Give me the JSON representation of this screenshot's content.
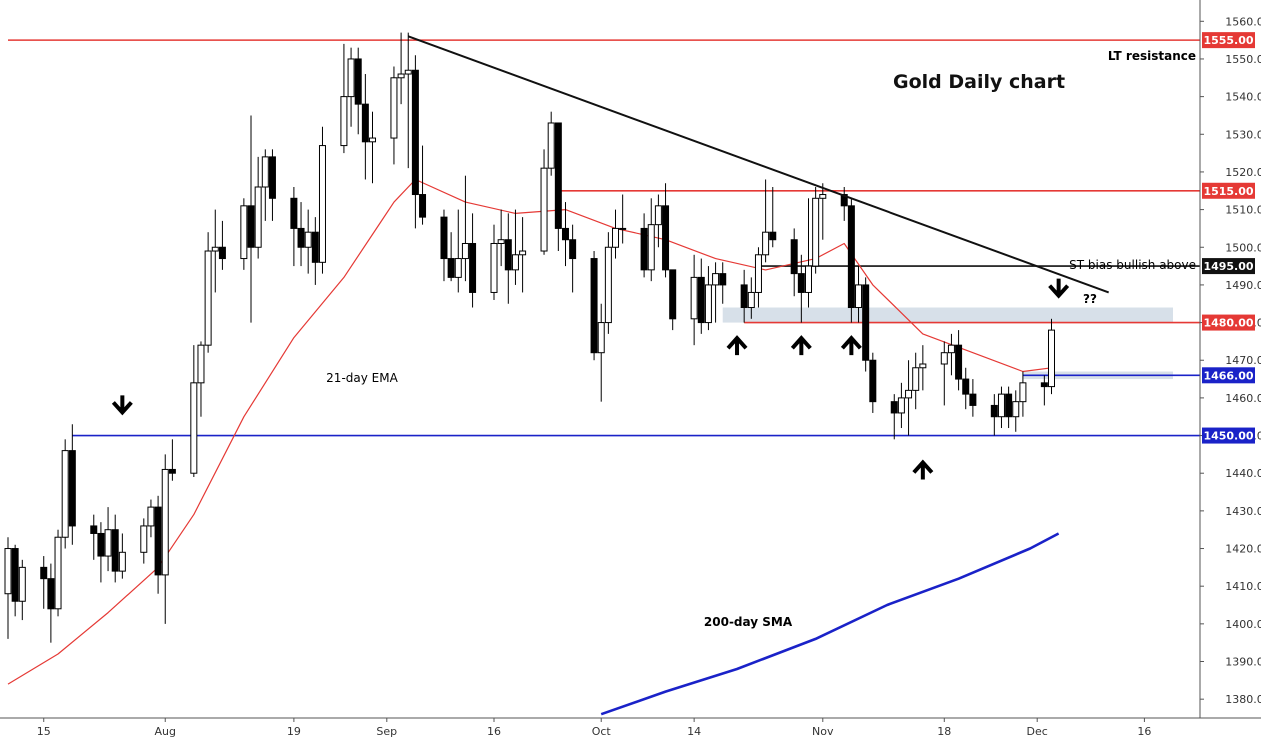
{
  "chart_data": {
    "type": "candlestick",
    "title": "Gold Daily chart",
    "ylim": [
      1375,
      1563
    ],
    "y_ticks": [
      1380,
      1390,
      1400,
      1410,
      1420,
      1430,
      1440,
      1450,
      1460,
      1470,
      1480,
      1490,
      1500,
      1510,
      1520,
      1530,
      1540,
      1550,
      1560
    ],
    "y_tick_labels": [
      "1380.00",
      "1390.00",
      "1400.00",
      "1410.00",
      "1420.00",
      "1430.00",
      "1440.00",
      "1450.00",
      "1460.00",
      "1470.00",
      "1480.00",
      "1490.00",
      "1500.00",
      "1510.00",
      "1520.00",
      "1530.00",
      "1540.00",
      "1550.00",
      "1560.00"
    ],
    "x_range": [
      "2019-07-10",
      "2019-12-20"
    ],
    "x_ticks": [
      {
        "date": "2019-07-15",
        "label": "15"
      },
      {
        "date": "2019-08-01",
        "label": "Aug"
      },
      {
        "date": "2019-08-19",
        "label": "19"
      },
      {
        "date": "2019-09-01",
        "label": "Sep"
      },
      {
        "date": "2019-09-16",
        "label": "16"
      },
      {
        "date": "2019-10-01",
        "label": "Oct"
      },
      {
        "date": "2019-10-14",
        "label": "14"
      },
      {
        "date": "2019-11-01",
        "label": "Nov"
      },
      {
        "date": "2019-11-18",
        "label": "18"
      },
      {
        "date": "2019-12-01",
        "label": "Dec"
      },
      {
        "date": "2019-12-16",
        "label": "16"
      }
    ],
    "candles": [
      {
        "d": "2019-07-10",
        "o": 1408,
        "h": 1423,
        "l": 1396,
        "c": 1420
      },
      {
        "d": "2019-07-11",
        "o": 1420,
        "h": 1421,
        "l": 1402,
        "c": 1406
      },
      {
        "d": "2019-07-12",
        "o": 1406,
        "h": 1417,
        "l": 1401,
        "c": 1415
      },
      {
        "d": "2019-07-15",
        "o": 1415,
        "h": 1418,
        "l": 1404,
        "c": 1412
      },
      {
        "d": "2019-07-16",
        "o": 1412,
        "h": 1416,
        "l": 1395,
        "c": 1404
      },
      {
        "d": "2019-07-17",
        "o": 1404,
        "h": 1425,
        "l": 1402,
        "c": 1423
      },
      {
        "d": "2019-07-18",
        "o": 1423,
        "h": 1449,
        "l": 1420,
        "c": 1446
      },
      {
        "d": "2019-07-19",
        "o": 1446,
        "h": 1453,
        "l": 1421,
        "c": 1426
      },
      {
        "d": "2019-07-22",
        "o": 1426,
        "h": 1429,
        "l": 1417,
        "c": 1424
      },
      {
        "d": "2019-07-23",
        "o": 1424,
        "h": 1427,
        "l": 1411,
        "c": 1418
      },
      {
        "d": "2019-07-24",
        "o": 1418,
        "h": 1431,
        "l": 1414,
        "c": 1425
      },
      {
        "d": "2019-07-25",
        "o": 1425,
        "h": 1429,
        "l": 1411,
        "c": 1414
      },
      {
        "d": "2019-07-26",
        "o": 1414,
        "h": 1424,
        "l": 1412,
        "c": 1419
      },
      {
        "d": "2019-07-29",
        "o": 1419,
        "h": 1428,
        "l": 1416,
        "c": 1426
      },
      {
        "d": "2019-07-30",
        "o": 1426,
        "h": 1433,
        "l": 1423,
        "c": 1431
      },
      {
        "d": "2019-07-31",
        "o": 1431,
        "h": 1434,
        "l": 1408,
        "c": 1413
      },
      {
        "d": "2019-08-01",
        "o": 1413,
        "h": 1445,
        "l": 1400,
        "c": 1441
      },
      {
        "d": "2019-08-02",
        "o": 1441,
        "h": 1449,
        "l": 1438,
        "c": 1440
      },
      {
        "d": "2019-08-05",
        "o": 1440,
        "h": 1474,
        "l": 1439,
        "c": 1464
      },
      {
        "d": "2019-08-06",
        "o": 1464,
        "h": 1475,
        "l": 1455,
        "c": 1474
      },
      {
        "d": "2019-08-07",
        "o": 1474,
        "h": 1504,
        "l": 1472,
        "c": 1499
      },
      {
        "d": "2019-08-08",
        "o": 1499,
        "h": 1510,
        "l": 1488,
        "c": 1500
      },
      {
        "d": "2019-08-09",
        "o": 1500,
        "h": 1507,
        "l": 1494,
        "c": 1497
      },
      {
        "d": "2019-08-12",
        "o": 1497,
        "h": 1513,
        "l": 1494,
        "c": 1511
      },
      {
        "d": "2019-08-13",
        "o": 1511,
        "h": 1535,
        "l": 1480,
        "c": 1500
      },
      {
        "d": "2019-08-14",
        "o": 1500,
        "h": 1524,
        "l": 1497,
        "c": 1516
      },
      {
        "d": "2019-08-15",
        "o": 1516,
        "h": 1526,
        "l": 1507,
        "c": 1524
      },
      {
        "d": "2019-08-16",
        "o": 1524,
        "h": 1526,
        "l": 1507,
        "c": 1513
      },
      {
        "d": "2019-08-19",
        "o": 1513,
        "h": 1516,
        "l": 1495,
        "c": 1505
      },
      {
        "d": "2019-08-20",
        "o": 1505,
        "h": 1512,
        "l": 1495,
        "c": 1500
      },
      {
        "d": "2019-08-21",
        "o": 1500,
        "h": 1510,
        "l": 1493,
        "c": 1504
      },
      {
        "d": "2019-08-22",
        "o": 1504,
        "h": 1508,
        "l": 1490,
        "c": 1496
      },
      {
        "d": "2019-08-23",
        "o": 1496,
        "h": 1532,
        "l": 1493,
        "c": 1527
      },
      {
        "d": "2019-08-26",
        "o": 1527,
        "h": 1554,
        "l": 1525,
        "c": 1540
      },
      {
        "d": "2019-08-27",
        "o": 1540,
        "h": 1553,
        "l": 1532,
        "c": 1550
      },
      {
        "d": "2019-08-28",
        "o": 1550,
        "h": 1553,
        "l": 1530,
        "c": 1538
      },
      {
        "d": "2019-08-29",
        "o": 1538,
        "h": 1546,
        "l": 1518,
        "c": 1528
      },
      {
        "d": "2019-08-30",
        "o": 1528,
        "h": 1536,
        "l": 1517,
        "c": 1529
      },
      {
        "d": "2019-09-02",
        "o": 1529,
        "h": 1548,
        "l": 1522,
        "c": 1545
      },
      {
        "d": "2019-09-03",
        "o": 1545,
        "h": 1557,
        "l": 1538,
        "c": 1546
      },
      {
        "d": "2019-09-04",
        "o": 1546,
        "h": 1557,
        "l": 1521,
        "c": 1547
      },
      {
        "d": "2019-09-05",
        "o": 1547,
        "h": 1551,
        "l": 1505,
        "c": 1514
      },
      {
        "d": "2019-09-06",
        "o": 1514,
        "h": 1527,
        "l": 1506,
        "c": 1508
      },
      {
        "d": "2019-09-09",
        "o": 1508,
        "h": 1510,
        "l": 1491,
        "c": 1497
      },
      {
        "d": "2019-09-10",
        "o": 1497,
        "h": 1504,
        "l": 1491,
        "c": 1492
      },
      {
        "d": "2019-09-11",
        "o": 1492,
        "h": 1510,
        "l": 1488,
        "c": 1497
      },
      {
        "d": "2019-09-12",
        "o": 1497,
        "h": 1519,
        "l": 1491,
        "c": 1501
      },
      {
        "d": "2019-09-13",
        "o": 1501,
        "h": 1509,
        "l": 1484,
        "c": 1488
      },
      {
        "d": "2019-09-16",
        "o": 1488,
        "h": 1506,
        "l": 1486,
        "c": 1501
      },
      {
        "d": "2019-09-17",
        "o": 1501,
        "h": 1510,
        "l": 1495,
        "c": 1502
      },
      {
        "d": "2019-09-18",
        "o": 1502,
        "h": 1509,
        "l": 1485,
        "c": 1494
      },
      {
        "d": "2019-09-19",
        "o": 1494,
        "h": 1510,
        "l": 1490,
        "c": 1498
      },
      {
        "d": "2019-09-20",
        "o": 1498,
        "h": 1508,
        "l": 1488,
        "c": 1499
      },
      {
        "d": "2019-09-23",
        "o": 1499,
        "h": 1526,
        "l": 1498,
        "c": 1521
      },
      {
        "d": "2019-09-24",
        "o": 1521,
        "h": 1536,
        "l": 1519,
        "c": 1533
      },
      {
        "d": "2019-09-25",
        "o": 1533,
        "h": 1533,
        "l": 1499,
        "c": 1505
      },
      {
        "d": "2019-09-26",
        "o": 1505,
        "h": 1512,
        "l": 1495,
        "c": 1502
      },
      {
        "d": "2019-09-27",
        "o": 1502,
        "h": 1506,
        "l": 1488,
        "c": 1497
      },
      {
        "d": "2019-09-30",
        "o": 1497,
        "h": 1499,
        "l": 1470,
        "c": 1472
      },
      {
        "d": "2019-10-01",
        "o": 1472,
        "h": 1485,
        "l": 1459,
        "c": 1480
      },
      {
        "d": "2019-10-02",
        "o": 1480,
        "h": 1504,
        "l": 1477,
        "c": 1500
      },
      {
        "d": "2019-10-03",
        "o": 1500,
        "h": 1510,
        "l": 1497,
        "c": 1505
      },
      {
        "d": "2019-10-04",
        "o": 1505,
        "h": 1514,
        "l": 1501,
        "c": 1505
      },
      {
        "d": "2019-10-07",
        "o": 1505,
        "h": 1509,
        "l": 1492,
        "c": 1494
      },
      {
        "d": "2019-10-08",
        "o": 1494,
        "h": 1513,
        "l": 1491,
        "c": 1506
      },
      {
        "d": "2019-10-09",
        "o": 1506,
        "h": 1514,
        "l": 1500,
        "c": 1511
      },
      {
        "d": "2019-10-10",
        "o": 1511,
        "h": 1517,
        "l": 1492,
        "c": 1494
      },
      {
        "d": "2019-10-11",
        "o": 1494,
        "h": 1494,
        "l": 1478,
        "c": 1481
      },
      {
        "d": "2019-10-14",
        "o": 1481,
        "h": 1498,
        "l": 1474,
        "c": 1492
      },
      {
        "d": "2019-10-15",
        "o": 1492,
        "h": 1497,
        "l": 1477,
        "c": 1480
      },
      {
        "d": "2019-10-16",
        "o": 1480,
        "h": 1495,
        "l": 1478,
        "c": 1490
      },
      {
        "d": "2019-10-17",
        "o": 1490,
        "h": 1496,
        "l": 1480,
        "c": 1493
      },
      {
        "d": "2019-10-18",
        "o": 1493,
        "h": 1496,
        "l": 1485,
        "c": 1490
      },
      {
        "d": "2019-10-21",
        "o": 1490,
        "h": 1494,
        "l": 1480,
        "c": 1484
      },
      {
        "d": "2019-10-22",
        "o": 1484,
        "h": 1492,
        "l": 1481,
        "c": 1488
      },
      {
        "d": "2019-10-23",
        "o": 1488,
        "h": 1500,
        "l": 1484,
        "c": 1498
      },
      {
        "d": "2019-10-24",
        "o": 1498,
        "h": 1518,
        "l": 1496,
        "c": 1504
      },
      {
        "d": "2019-10-25",
        "o": 1504,
        "h": 1516,
        "l": 1500,
        "c": 1502
      },
      {
        "d": "2019-10-28",
        "o": 1502,
        "h": 1505,
        "l": 1487,
        "c": 1493
      },
      {
        "d": "2019-10-29",
        "o": 1493,
        "h": 1498,
        "l": 1480,
        "c": 1488
      },
      {
        "d": "2019-10-30",
        "o": 1488,
        "h": 1513,
        "l": 1484,
        "c": 1495
      },
      {
        "d": "2019-10-31",
        "o": 1495,
        "h": 1516,
        "l": 1493,
        "c": 1513
      },
      {
        "d": "2019-11-01",
        "o": 1513,
        "h": 1517,
        "l": 1502,
        "c": 1514
      },
      {
        "d": "2019-11-04",
        "o": 1514,
        "h": 1516,
        "l": 1507,
        "c": 1511
      },
      {
        "d": "2019-11-05",
        "o": 1511,
        "h": 1513,
        "l": 1480,
        "c": 1484
      },
      {
        "d": "2019-11-06",
        "o": 1484,
        "h": 1495,
        "l": 1480,
        "c": 1490
      },
      {
        "d": "2019-11-07",
        "o": 1490,
        "h": 1492,
        "l": 1467,
        "c": 1470
      },
      {
        "d": "2019-11-08",
        "o": 1470,
        "h": 1472,
        "l": 1456,
        "c": 1459
      },
      {
        "d": "2019-11-11",
        "o": 1459,
        "h": 1461,
        "l": 1449,
        "c": 1456
      },
      {
        "d": "2019-11-12",
        "o": 1456,
        "h": 1464,
        "l": 1452,
        "c": 1460
      },
      {
        "d": "2019-11-13",
        "o": 1460,
        "h": 1470,
        "l": 1450,
        "c": 1462
      },
      {
        "d": "2019-11-14",
        "o": 1462,
        "h": 1472,
        "l": 1457,
        "c": 1468
      },
      {
        "d": "2019-11-15",
        "o": 1468,
        "h": 1474,
        "l": 1462,
        "c": 1469
      },
      {
        "d": "2019-11-18",
        "o": 1469,
        "h": 1475,
        "l": 1458,
        "c": 1472
      },
      {
        "d": "2019-11-19",
        "o": 1472,
        "h": 1477,
        "l": 1466,
        "c": 1474
      },
      {
        "d": "2019-11-20",
        "o": 1474,
        "h": 1478,
        "l": 1462,
        "c": 1465
      },
      {
        "d": "2019-11-21",
        "o": 1465,
        "h": 1468,
        "l": 1457,
        "c": 1461
      },
      {
        "d": "2019-11-22",
        "o": 1461,
        "h": 1465,
        "l": 1455,
        "c": 1458
      },
      {
        "d": "2019-11-25",
        "o": 1458,
        "h": 1461,
        "l": 1450,
        "c": 1455
      },
      {
        "d": "2019-11-26",
        "o": 1455,
        "h": 1463,
        "l": 1452,
        "c": 1461
      },
      {
        "d": "2019-11-27",
        "o": 1461,
        "h": 1463,
        "l": 1452,
        "c": 1455
      },
      {
        "d": "2019-11-28",
        "o": 1455,
        "h": 1462,
        "l": 1451,
        "c": 1459
      },
      {
        "d": "2019-11-29",
        "o": 1459,
        "h": 1467,
        "l": 1455,
        "c": 1464
      },
      {
        "d": "2019-12-02",
        "o": 1464,
        "h": 1466,
        "l": 1458,
        "c": 1463
      },
      {
        "d": "2019-12-03",
        "o": 1463,
        "h": 1481,
        "l": 1461,
        "c": 1478
      }
    ],
    "series": [
      {
        "name": "21-day EMA",
        "color": "#e53935",
        "points": [
          [
            "2019-07-10",
            1384
          ],
          [
            "2019-07-17",
            1392
          ],
          [
            "2019-07-24",
            1403
          ],
          [
            "2019-07-31",
            1415
          ],
          [
            "2019-08-05",
            1429
          ],
          [
            "2019-08-12",
            1455
          ],
          [
            "2019-08-19",
            1476
          ],
          [
            "2019-08-26",
            1492
          ],
          [
            "2019-09-02",
            1512
          ],
          [
            "2019-09-05",
            1518
          ],
          [
            "2019-09-12",
            1512
          ],
          [
            "2019-09-19",
            1509
          ],
          [
            "2019-09-26",
            1510
          ],
          [
            "2019-10-03",
            1505
          ],
          [
            "2019-10-10",
            1502
          ],
          [
            "2019-10-17",
            1497
          ],
          [
            "2019-10-24",
            1494
          ],
          [
            "2019-10-31",
            1497
          ],
          [
            "2019-11-04",
            1501
          ],
          [
            "2019-11-08",
            1490
          ],
          [
            "2019-11-15",
            1477
          ],
          [
            "2019-11-22",
            1472
          ],
          [
            "2019-11-29",
            1467
          ],
          [
            "2019-12-03",
            1468
          ]
        ]
      },
      {
        "name": "200-day SMA",
        "color": "#1a22c8",
        "points": [
          [
            "2019-10-01",
            1376
          ],
          [
            "2019-10-10",
            1382
          ],
          [
            "2019-10-20",
            1388
          ],
          [
            "2019-10-31",
            1396
          ],
          [
            "2019-11-10",
            1405
          ],
          [
            "2019-11-20",
            1412
          ],
          [
            "2019-11-30",
            1420
          ],
          [
            "2019-12-04",
            1424
          ]
        ]
      }
    ],
    "levels": [
      {
        "value": 1555.0,
        "label": "1555.00",
        "color": "#e53935",
        "from": "2019-07-10",
        "to": "2019-12-20"
      },
      {
        "value": 1515.0,
        "label": "1515.00",
        "color": "#e53935",
        "from": "2019-09-25",
        "to": "2019-12-20"
      },
      {
        "value": 1495.0,
        "label": "1495.00",
        "color": "#111111",
        "from": "2019-10-23",
        "to": "2019-12-20"
      },
      {
        "value": 1480.0,
        "label": "1480.00",
        "color": "#e53935",
        "from": "2019-10-21",
        "to": "2019-12-20"
      },
      {
        "value": 1466.0,
        "label": "1466.00",
        "color": "#1a22c8",
        "from": "2019-11-29",
        "to": "2019-12-20"
      },
      {
        "value": 1450.0,
        "label": "1450.00",
        "color": "#1a22c8",
        "from": "2019-07-19",
        "to": "2019-12-20"
      }
    ],
    "zones": [
      {
        "from_date": "2019-10-18",
        "to_date": "2019-12-20",
        "low": 1480,
        "high": 1484,
        "color": "#c9d6e2"
      },
      {
        "from_date": "2019-11-29",
        "to_date": "2019-12-20",
        "low": 1465,
        "high": 1467,
        "color": "#c9d6e2"
      }
    ],
    "trendline": {
      "from": [
        "2019-09-04",
        1556
      ],
      "to": [
        "2019-12-11",
        1488
      ],
      "color": "#111111"
    },
    "annotations": [
      {
        "text": "Gold Daily chart"
      },
      {
        "text": "LT resistance",
        "color": "#111111"
      },
      {
        "text": "ST bias bullish above",
        "color": "#333333"
      },
      {
        "text": "21-day EMA",
        "color": "#e53935"
      },
      {
        "text": "200-day SMA",
        "color": "#1a22c8"
      },
      {
        "text": "??"
      }
    ],
    "arrows": [
      {
        "date": "2019-07-26",
        "value": 1458,
        "dir": "down"
      },
      {
        "date": "2019-10-20",
        "value": 1474,
        "dir": "up"
      },
      {
        "date": "2019-10-29",
        "value": 1474,
        "dir": "up"
      },
      {
        "date": "2019-11-05",
        "value": 1474,
        "dir": "up"
      },
      {
        "date": "2019-11-15",
        "value": 1441,
        "dir": "up"
      },
      {
        "date": "2019-12-04",
        "value": 1489,
        "dir": "down"
      }
    ],
    "colors": {
      "bull_body": "#ffffff",
      "bear_body": "#000000",
      "wick": "#000000",
      "grid": "#ffffff",
      "axis_line": "#555555",
      "tick_text": "#333333"
    }
  }
}
